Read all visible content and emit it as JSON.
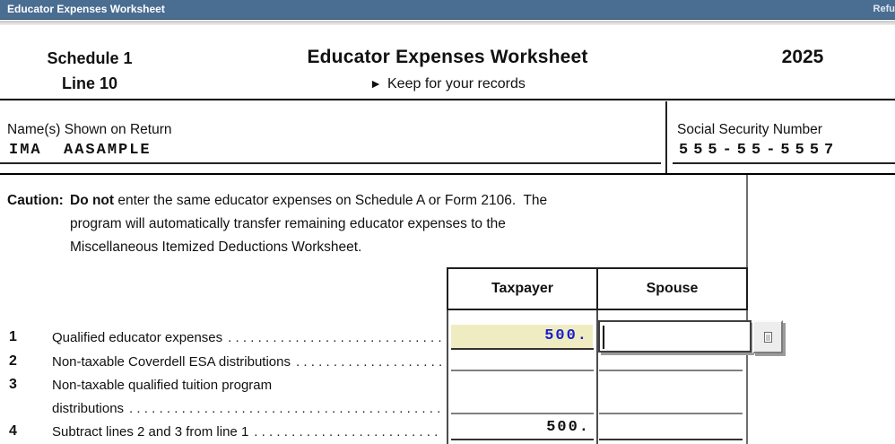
{
  "titlebar": {
    "title": "Educator Expenses Worksheet",
    "right_text": "Refu"
  },
  "header": {
    "form_ref_line1": "Schedule 1",
    "form_ref_line2": "Line 10",
    "title": "Educator Expenses Worksheet",
    "subtitle_arrow": "►",
    "subtitle": "Keep for your records",
    "year": "2025"
  },
  "identity": {
    "name_label": "Name(s) Shown on Return",
    "name_value": "IMA  AASAMPLE",
    "ssn_label": "Social Security Number",
    "ssn_value": "555-55-5557"
  },
  "caution": {
    "label": "Caution:",
    "line1_bold": "Do not",
    "line1_rest": " enter the same educator expenses on Schedule A or Form 2106.  The",
    "line2": "program will automatically transfer remaining educator expenses to the",
    "line3": "Miscellaneous Itemized Deductions Worksheet."
  },
  "table": {
    "col_taxpayer": "Taxpayer",
    "col_spouse": "Spouse"
  },
  "rows": [
    {
      "num": "1",
      "label": "Qualified educator expenses",
      "taxpayer": "500.",
      "spouse": ""
    },
    {
      "num": "2",
      "label": "Non-taxable Coverdell ESA distributions",
      "taxpayer": "",
      "spouse": ""
    },
    {
      "num": "3",
      "label": "Non-taxable qualified tuition program",
      "label2": "distributions",
      "taxpayer": "",
      "spouse": ""
    },
    {
      "num": "4",
      "label": "Subtract lines 2 and 3 from line 1",
      "taxpayer": "500.",
      "spouse": ""
    }
  ],
  "misc": {
    "leader_dots": "............................................................"
  },
  "colors": {
    "titlebar_bg": "#4a6d92",
    "field_highlight": "#f0ecc2",
    "entry_blue": "#1c1ccd",
    "underline_gray": "#808080"
  }
}
